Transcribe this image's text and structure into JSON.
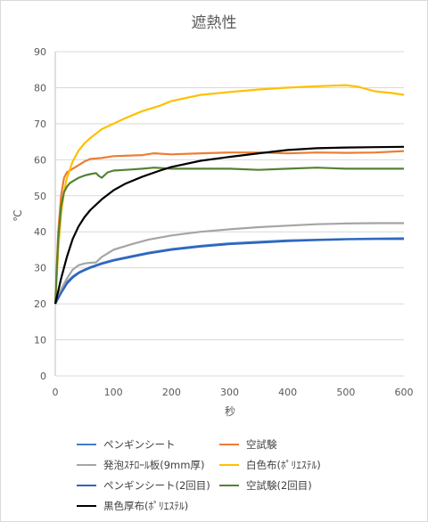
{
  "chart_data": {
    "type": "line",
    "title": "遮熱性",
    "xlabel": "秒",
    "ylabel": "℃",
    "xlim": [
      0,
      600
    ],
    "ylim": [
      0,
      90
    ],
    "xticks": [
      "0",
      "100",
      "200",
      "300",
      "400",
      "500",
      "600"
    ],
    "yticks": [
      "0",
      "10",
      "20",
      "30",
      "40",
      "50",
      "60",
      "70",
      "80",
      "90"
    ],
    "grid": "horizontal",
    "legend_position": "bottom",
    "series": [
      {
        "name": "ペンギンシート",
        "color": "#3f7fc7",
        "x": [
          0,
          10,
          20,
          30,
          40,
          50,
          60,
          80,
          100,
          130,
          160,
          200,
          250,
          300,
          350,
          400,
          450,
          500,
          550,
          600
        ],
        "y": [
          20,
          23.5,
          26,
          27.6,
          28.7,
          29.5,
          30.2,
          31.3,
          32.2,
          33.2,
          34.2,
          35.2,
          36.1,
          36.8,
          37.2,
          37.6,
          37.8,
          38.0,
          38.1,
          38.2
        ]
      },
      {
        "name": "空試験",
        "color": "#ed7d31",
        "x": [
          0,
          5,
          10,
          15,
          20,
          25,
          30,
          40,
          50,
          60,
          80,
          100,
          150,
          170,
          200,
          250,
          300,
          350,
          400,
          450,
          500,
          550,
          600
        ],
        "y": [
          20,
          40,
          50,
          55,
          56.5,
          57,
          57.5,
          58.5,
          59.5,
          60.2,
          60.5,
          61,
          61.3,
          61.8,
          61.5,
          61.8,
          62,
          62,
          61.8,
          62,
          61.9,
          62,
          62.4
        ]
      },
      {
        "name": "発泡ｽﾁﾛｰﾙ板(9mm厚)",
        "color": "#a5a5a5",
        "x": [
          0,
          10,
          20,
          30,
          40,
          50,
          60,
          70,
          80,
          100,
          130,
          160,
          200,
          250,
          300,
          350,
          400,
          450,
          500,
          550,
          600
        ],
        "y": [
          20,
          24,
          27,
          29.5,
          30.7,
          31.2,
          31.4,
          31.5,
          33,
          35,
          36.5,
          37.8,
          39,
          40,
          40.7,
          41.3,
          41.7,
          42.1,
          42.3,
          42.4,
          42.4
        ]
      },
      {
        "name": "白色布(ﾎﾟﾘｴｽﾃﾙ)",
        "color": "#ffc000",
        "x": [
          0,
          5,
          10,
          15,
          20,
          30,
          40,
          50,
          60,
          80,
          100,
          120,
          150,
          180,
          200,
          250,
          300,
          350,
          400,
          450,
          500,
          520,
          550,
          580,
          600
        ],
        "y": [
          20,
          35,
          45,
          51,
          55,
          59.5,
          62.5,
          64.5,
          66,
          68.5,
          70,
          71.5,
          73.5,
          75,
          76.3,
          78,
          78.8,
          79.5,
          80,
          80.4,
          80.7,
          80.3,
          79,
          78.5,
          78
        ]
      },
      {
        "name": "ペンギンシート(2回目)",
        "color": "#2e64c0",
        "x": [
          0,
          10,
          20,
          30,
          40,
          50,
          60,
          80,
          100,
          130,
          160,
          200,
          250,
          300,
          350,
          400,
          450,
          500,
          550,
          600
        ],
        "y": [
          20,
          23,
          25.6,
          27.3,
          28.5,
          29.3,
          30,
          31.1,
          32,
          33,
          34,
          35,
          35.9,
          36.6,
          37,
          37.4,
          37.7,
          37.9,
          38,
          38
        ]
      },
      {
        "name": "空試験(2回目)",
        "color": "#548235",
        "x": [
          0,
          5,
          10,
          15,
          20,
          25,
          30,
          40,
          50,
          60,
          70,
          75,
          80,
          90,
          100,
          130,
          150,
          170,
          200,
          250,
          300,
          350,
          400,
          450,
          500,
          550,
          600
        ],
        "y": [
          20,
          38,
          47,
          51,
          52.5,
          53.5,
          54,
          55,
          55.6,
          56,
          56.3,
          55.5,
          55,
          56.5,
          57,
          57.3,
          57.5,
          57.8,
          57.5,
          57.5,
          57.5,
          57.2,
          57.5,
          57.8,
          57.5,
          57.5,
          57.5
        ]
      },
      {
        "name": "黒色厚布(ﾎﾟﾘｴｽﾃﾙ)",
        "color": "#000000",
        "x": [
          0,
          10,
          20,
          30,
          40,
          50,
          60,
          80,
          100,
          120,
          150,
          180,
          200,
          250,
          300,
          350,
          400,
          450,
          500,
          550,
          600
        ],
        "y": [
          20,
          27,
          33,
          38,
          41.5,
          44,
          46,
          49,
          51.5,
          53.3,
          55.3,
          57,
          58,
          59.7,
          60.8,
          61.8,
          62.7,
          63.2,
          63.4,
          63.5,
          63.6
        ]
      }
    ]
  }
}
